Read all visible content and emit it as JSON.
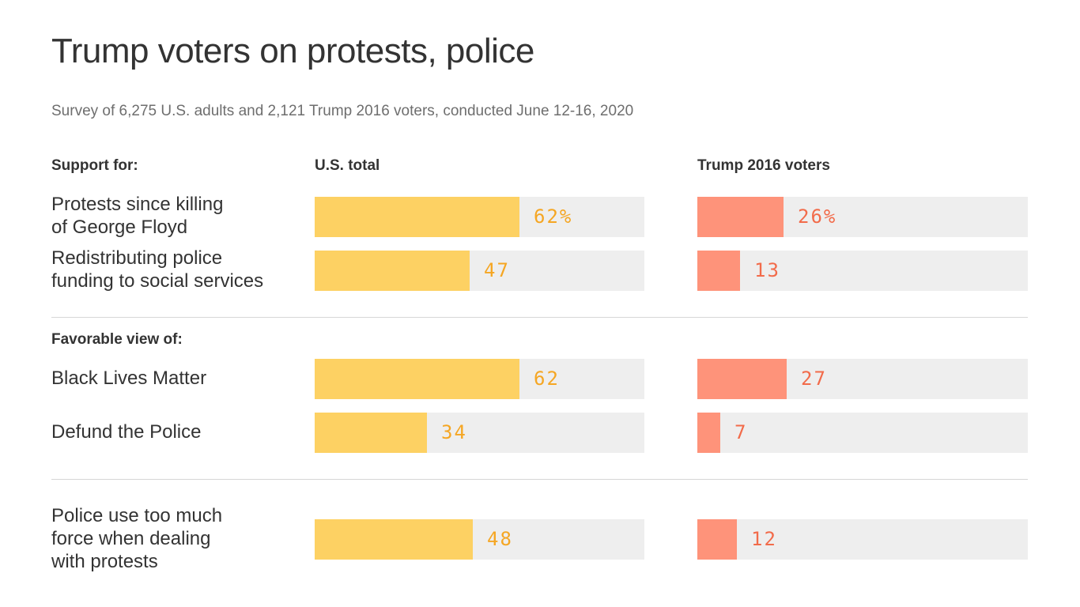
{
  "title": "Trump voters on protests, police",
  "subtitle": "Survey of 6,275 U.S. adults and 2,121 Trump 2016 voters, conducted June 12-16, 2020",
  "colors": {
    "us_total": "#fdd163",
    "us_total_text": "#f5a623",
    "trump": "#fe937a",
    "trump_text": "#f26b4a",
    "track": "#eeeeee"
  },
  "chart_data": {
    "type": "bar",
    "orientation": "horizontal",
    "xlim": [
      0,
      100
    ],
    "series_headers": [
      "U.S. total",
      "Trump 2016 voters"
    ],
    "sections": [
      {
        "label": "Support for:"
      },
      {
        "label": "Favorable view of:"
      },
      {
        "label": ""
      }
    ],
    "categories": [
      "Protests since killing\nof George Floyd",
      "Redistributing police\nfunding to social services",
      "Black Lives Matter",
      "Defund the Police",
      "Police use too much\nforce when dealing\nwith protests"
    ],
    "series": [
      {
        "name": "U.S. total",
        "values": [
          62,
          47,
          62,
          34,
          48
        ],
        "labels": [
          "62%",
          "47",
          "62",
          "34",
          "48"
        ]
      },
      {
        "name": "Trump 2016 voters",
        "values": [
          26,
          13,
          27,
          7,
          12
        ],
        "labels": [
          "26%",
          "13",
          "27",
          "7",
          "12"
        ]
      }
    ]
  }
}
